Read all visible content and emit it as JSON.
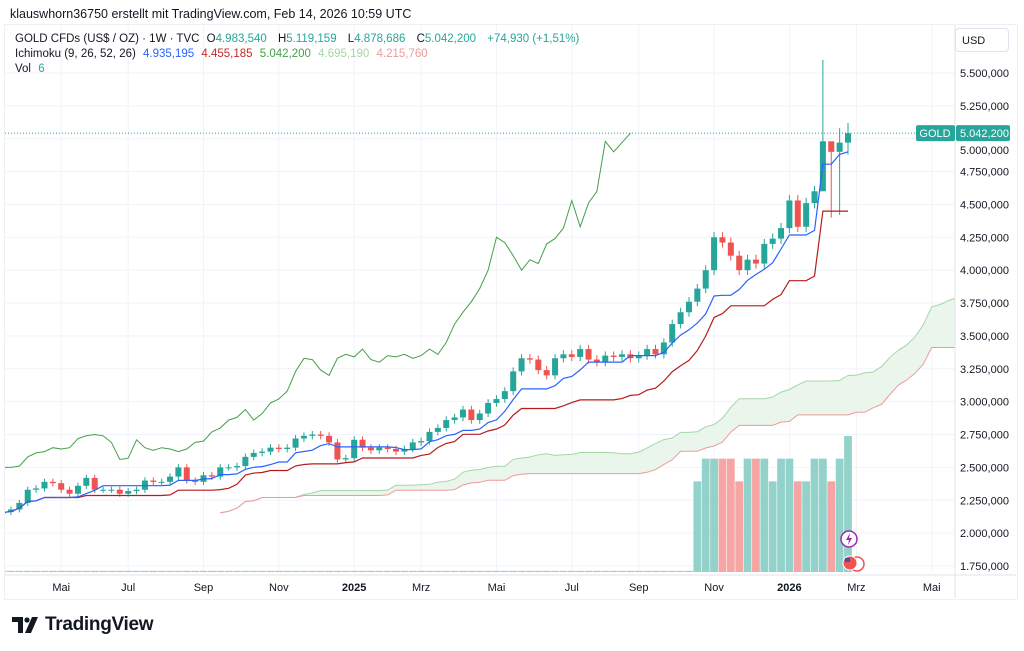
{
  "topline": "klauswhorn36750 erstellt mit TradingView.com, Feb 14, 2026 10:59 UTC",
  "legend": {
    "symbol": "GOLD CFDs (US$ / OZ) · 1W · TVC",
    "o_label": "O",
    "o": "4.983,540",
    "h_label": "H",
    "h": "5.119,159",
    "l_label": "L",
    "l": "4.878,686",
    "c_label": "C",
    "c": "5.042,200",
    "change": "+74,930 (+1,51%)",
    "ichimoku_label": "Ichimoku (9, 26, 52, 26)",
    "tenkan": "4.935,195",
    "kijun": "4.455,185",
    "lagging": "5.042,200",
    "span_a": "4.695,190",
    "span_b": "4.215,760",
    "vol_label": "Vol",
    "vol": "6"
  },
  "currency": "USD",
  "price_tag": {
    "symbol": "GOLD",
    "value": "5.042,200"
  },
  "logo_text": "TradingView",
  "colors": {
    "up": "#26a69a",
    "down": "#ef5350",
    "tenkan": "#2962ff",
    "kijun": "#b71c1c",
    "lagging": "#43a047",
    "span_a": "#a5d6a7",
    "span_b": "#ef9a9a",
    "cloud": "#e8f5e9"
  },
  "chart_data": {
    "type": "candlestick",
    "interval": "1W",
    "y_ticks": [
      "5.500,000",
      "5.250,000",
      "5.000,000",
      "4.750,000",
      "4.500,000",
      "4.250,000",
      "4.000,000",
      "3.750,000",
      "3.500,000",
      "3.250,000",
      "3.000,000",
      "2.750,000",
      "2.500,000",
      "2.250,000",
      "2.000,000",
      "1.750,000"
    ],
    "y_tick_values": [
      5500,
      5250,
      5000,
      4750,
      4500,
      4250,
      4000,
      3750,
      3500,
      3250,
      3000,
      2750,
      2500,
      2250,
      2000,
      1750
    ],
    "ylim": [
      1720,
      5820
    ],
    "x_ticks": [
      {
        "label": "Mai",
        "week": 7,
        "bold": false
      },
      {
        "label": "Jul",
        "week": 15,
        "bold": false
      },
      {
        "label": "Sep",
        "week": 24,
        "bold": false
      },
      {
        "label": "Nov",
        "week": 33,
        "bold": false
      },
      {
        "label": "2025",
        "week": 42,
        "bold": true
      },
      {
        "label": "Mrz",
        "week": 50,
        "bold": false
      },
      {
        "label": "Mai",
        "week": 59,
        "bold": false
      },
      {
        "label": "Jul",
        "week": 68,
        "bold": false
      },
      {
        "label": "Sep",
        "week": 76,
        "bold": false
      },
      {
        "label": "Nov",
        "week": 85,
        "bold": false
      },
      {
        "label": "2026",
        "week": 94,
        "bold": true
      },
      {
        "label": "Mrz",
        "week": 102,
        "bold": false
      },
      {
        "label": "Mai",
        "week": 111,
        "bold": false
      }
    ],
    "first_open": 2150,
    "closes": [
      2160,
      2180,
      2230,
      2330,
      2340,
      2390,
      2380,
      2330,
      2300,
      2360,
      2420,
      2330,
      2330,
      2330,
      2300,
      2320,
      2330,
      2400,
      2390,
      2390,
      2430,
      2500,
      2400,
      2390,
      2440,
      2430,
      2500,
      2500,
      2510,
      2580,
      2610,
      2620,
      2650,
      2640,
      2650,
      2720,
      2740,
      2750,
      2740,
      2690,
      2560,
      2570,
      2710,
      2650,
      2630,
      2650,
      2640,
      2620,
      2640,
      2690,
      2700,
      2770,
      2800,
      2860,
      2880,
      2940,
      2860,
      2910,
      2990,
      3020,
      3080,
      3230,
      3330,
      3320,
      3240,
      3200,
      3330,
      3360,
      3340,
      3400,
      3320,
      3300,
      3350,
      3340,
      3360,
      3330,
      3350,
      3400,
      3360,
      3450,
      3590,
      3680,
      3760,
      3860,
      4000,
      4250,
      4210,
      4110,
      4000,
      4080,
      4050,
      4200,
      4240,
      4320,
      4530,
      4330,
      4510,
      4600,
      4980,
      4900,
      4970,
      5042
    ],
    "wick_overrides": {
      "98": [
        5600,
        4650
      ],
      "99": [
        4960,
        4400
      ],
      "100": [
        5080,
        4420
      ],
      "101": [
        5119,
        4878
      ]
    },
    "volumes_last": [
      4,
      5,
      5,
      5,
      5,
      4,
      5,
      5,
      5,
      4,
      5,
      5,
      4,
      4,
      5,
      5,
      4,
      5,
      6
    ],
    "vol_max": 6
  }
}
